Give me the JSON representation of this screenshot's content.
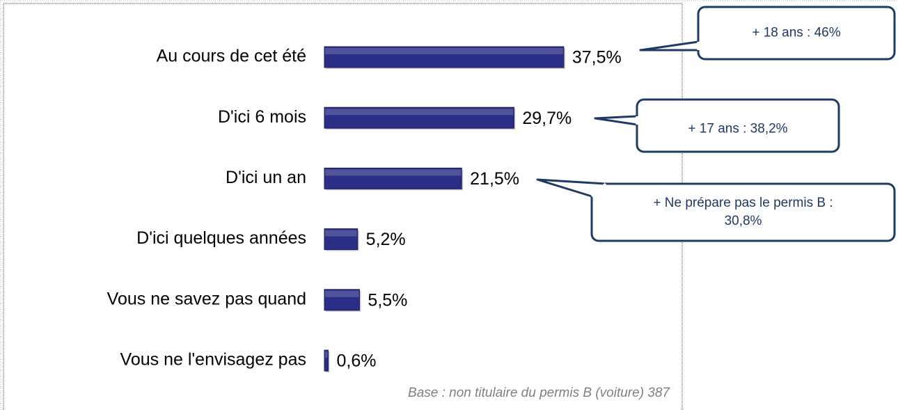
{
  "chart_data": {
    "type": "bar",
    "orientation": "horizontal",
    "categories": [
      "Au cours de cet été",
      "D'ici 6 mois",
      "D'ici un an",
      "D'ici quelques années",
      "Vous ne savez pas quand",
      "Vous ne l'envisagez pas"
    ],
    "values": [
      37.5,
      29.7,
      21.5,
      5.2,
      5.5,
      0.6
    ],
    "value_labels": [
      "37,5%",
      "29,7%",
      "21,5%",
      "5,2%",
      "5,5%",
      "0,6%"
    ],
    "color": "#2b2e86",
    "annotations": [
      {
        "lines": [
          "+ 18 ans  : 46%"
        ]
      },
      {
        "lines": [
          "+ 17 ans  : 38,2%"
        ]
      },
      {
        "lines": [
          "+ Ne prépare pas le permis B  :",
          "30,8%"
        ]
      }
    ],
    "footnote": "Base : non titulaire du permis B (voiture)  387"
  }
}
